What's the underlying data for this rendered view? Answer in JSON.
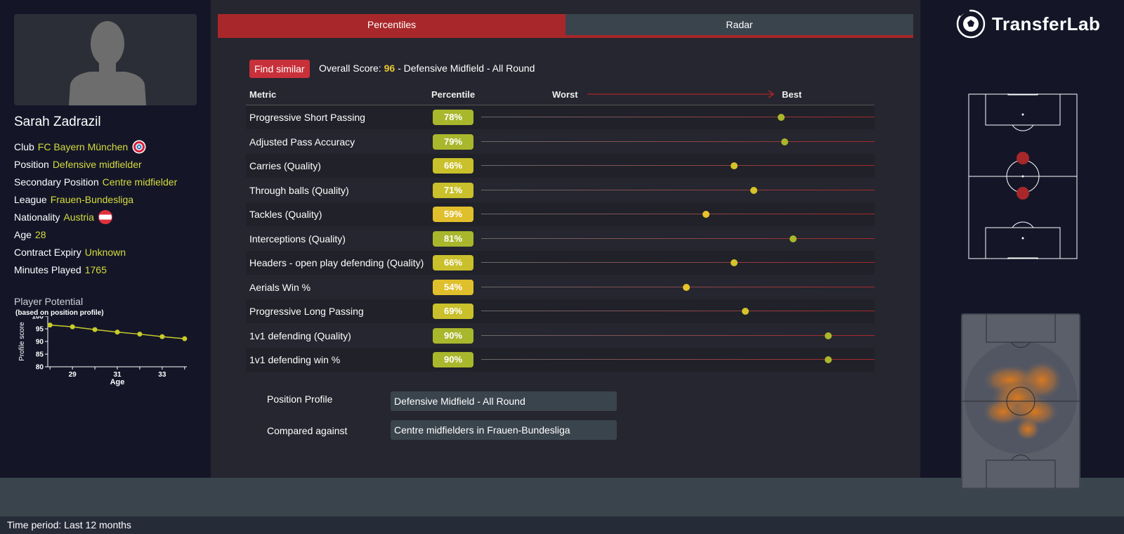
{
  "player": {
    "name": "Sarah Zadrazil",
    "fields": [
      {
        "label": "Club",
        "value": "FC Bayern München",
        "badge": "club-crest-icon"
      },
      {
        "label": "Position",
        "value": "Defensive midfielder"
      },
      {
        "label": "Secondary Position",
        "value": "Centre midfielder"
      },
      {
        "label": "League",
        "value": "Frauen-Bundesliga"
      },
      {
        "label": "Nationality",
        "value": "Austria",
        "badge": "austria-flag-icon"
      },
      {
        "label": "Age",
        "value": "28"
      },
      {
        "label": "Contract Expiry",
        "value": "Unknown"
      },
      {
        "label": "Minutes Played",
        "value": "1765"
      }
    ]
  },
  "potential": {
    "title": "Player Potential",
    "subtitle": "(based on position profile)",
    "chart_data": {
      "type": "line",
      "xlabel": "Age",
      "ylabel": "Profile score",
      "x": [
        28,
        29,
        30,
        31,
        32,
        33,
        34
      ],
      "values": [
        96.5,
        95.8,
        94.7,
        93.7,
        92.9,
        91.9,
        91.1
      ],
      "xticks": [
        "29",
        "31",
        "33"
      ],
      "yticks": [
        "100",
        "95",
        "90",
        "85",
        "80"
      ],
      "ylim": [
        80,
        100
      ],
      "xlim": [
        27.9,
        34.1
      ],
      "color": "#c8cc2a"
    }
  },
  "tabs": [
    {
      "label": "Percentiles",
      "active": true
    },
    {
      "label": "Radar",
      "active": false
    }
  ],
  "toolbar": {
    "find_similar": "Find similar",
    "overall_prefix": "Overall Score:",
    "overall_score": "96",
    "overall_suffix": "- Defensive Midfield - All Round"
  },
  "table": {
    "col_metric": "Metric",
    "col_percentile": "Percentile",
    "worst": "Worst",
    "best": "Best"
  },
  "chart_data": {
    "type": "scatter",
    "categories": [
      "Progressive Short Passing",
      "Adjusted Pass Accuracy",
      "Carries (Quality)",
      "Through balls (Quality)",
      "Tackles (Quality)",
      "Interceptions (Quality)",
      "Headers - open play defending (Quality)",
      "Aerials Win %",
      "Progressive Long Passing",
      "1v1 defending (Quality)",
      "1v1 defending win %"
    ],
    "values": [
      78,
      79,
      66,
      71,
      59,
      81,
      66,
      54,
      69,
      90,
      90
    ],
    "labels": [
      "78%",
      "79%",
      "66%",
      "71%",
      "59%",
      "81%",
      "66%",
      "54%",
      "69%",
      "90%",
      "90%"
    ],
    "xlim": [
      0,
      100
    ]
  },
  "profile": {
    "position_label": "Position Profile",
    "position_value": "Defensive Midfield - All Round",
    "compared_label": "Compared against",
    "compared_value": "Centre midfielders in Frauen-Bundesliga"
  },
  "brand": {
    "name": "TransferLab"
  },
  "footer": {
    "time_period": "Time period: Last 12 months"
  },
  "colors": {
    "accent": "#a8272a",
    "highlight": "#d6dc3c",
    "score": "#e8c832"
  }
}
